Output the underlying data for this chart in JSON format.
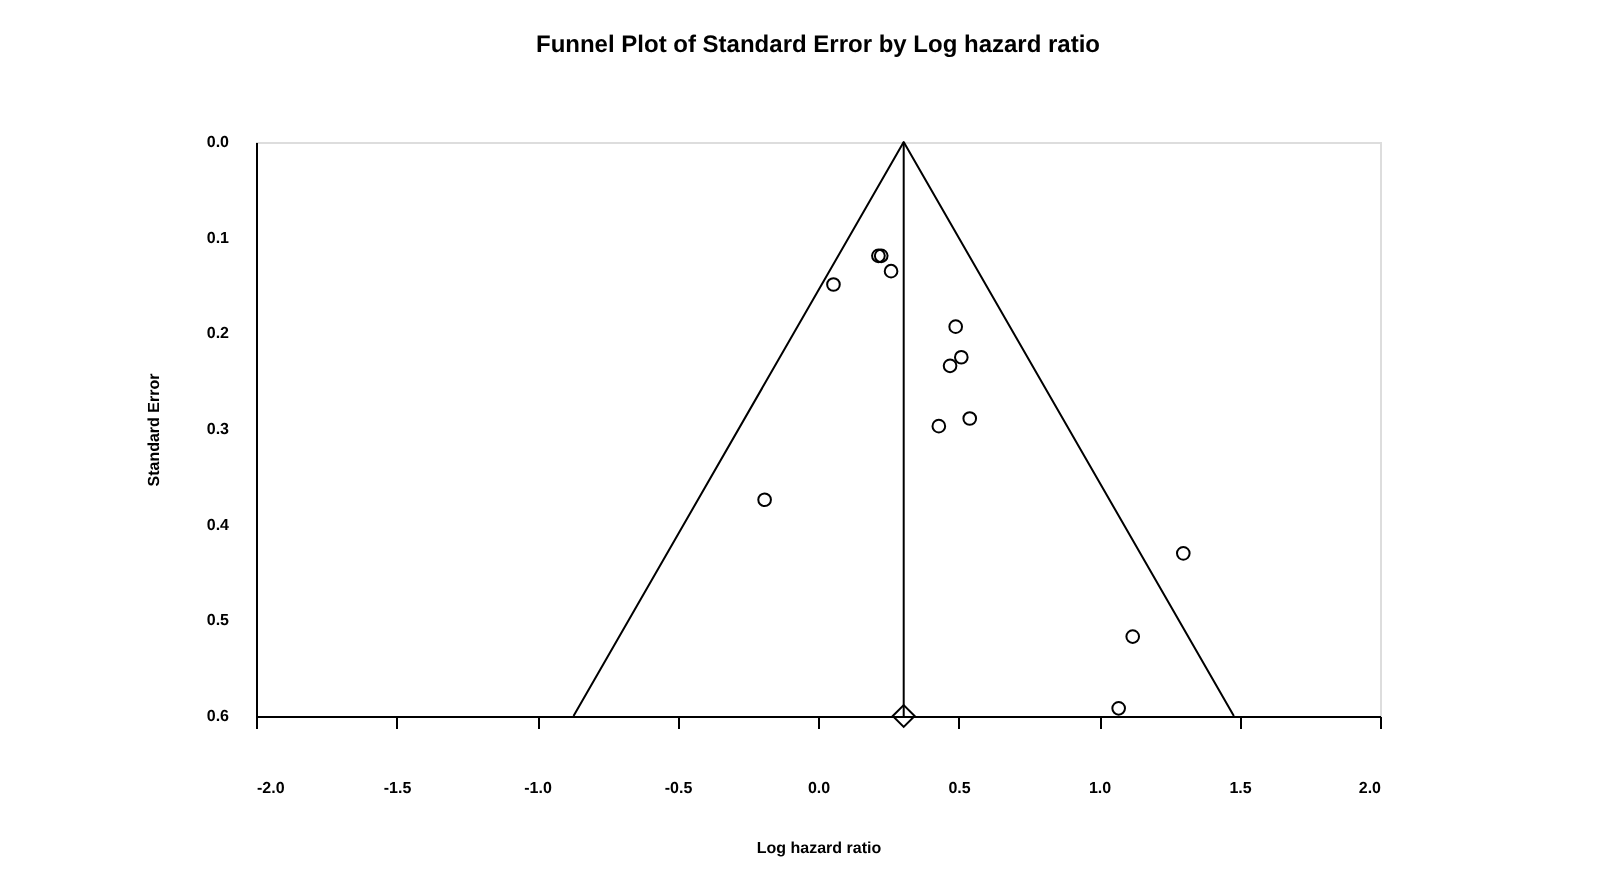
{
  "chart_data": {
    "type": "scatter",
    "title": "Funnel Plot of Standard Error by Log hazard ratio",
    "xlabel": "Log hazard ratio",
    "ylabel": "Standard Error",
    "xlim": [
      -2.0,
      2.0
    ],
    "ylim": [
      0.6,
      0.0
    ],
    "xticks": [
      {
        "value": -2.0,
        "label": "-2.0"
      },
      {
        "value": -1.5,
        "label": "-1.5"
      },
      {
        "value": -1.0,
        "label": "-1.0"
      },
      {
        "value": -0.5,
        "label": "-0.5"
      },
      {
        "value": 0.0,
        "label": "0.0"
      },
      {
        "value": 0.5,
        "label": "0.5"
      },
      {
        "value": 1.0,
        "label": "1.0"
      },
      {
        "value": 1.5,
        "label": "1.5"
      },
      {
        "value": 2.0,
        "label": "2.0"
      }
    ],
    "yticks": [
      {
        "value": 0.0,
        "label": "0.0"
      },
      0.1,
      0.2,
      0.3,
      0.4,
      0.5,
      0.6
    ],
    "grid": false,
    "series": [
      {
        "marker": "circle",
        "color": "#000000",
        "x": [
          0.215,
          0.225,
          0.26,
          0.055,
          0.49,
          0.51,
          0.47,
          0.43,
          0.54,
          -0.19,
          1.3,
          1.12,
          1.07
        ],
        "values": [
          0.119,
          0.119,
          0.135,
          0.149,
          0.193,
          0.225,
          0.234,
          0.297,
          0.289,
          0.374,
          0.43,
          0.517,
          0.592
        ]
      },
      {
        "type": "line",
        "marker": "none",
        "color": "#000000",
        "x": [
          -0.87,
          0.305,
          1.48
        ],
        "values": [
          0.6,
          0.0,
          0.6
        ]
      },
      {
        "marker": "diamond",
        "color": "#000000",
        "x": [
          0.305
        ],
        "values": [
          0.6
        ]
      }
    ],
    "ref_lines": [
      {
        "axis": "x",
        "value": 0.305,
        "color": "#000000"
      }
    ]
  }
}
